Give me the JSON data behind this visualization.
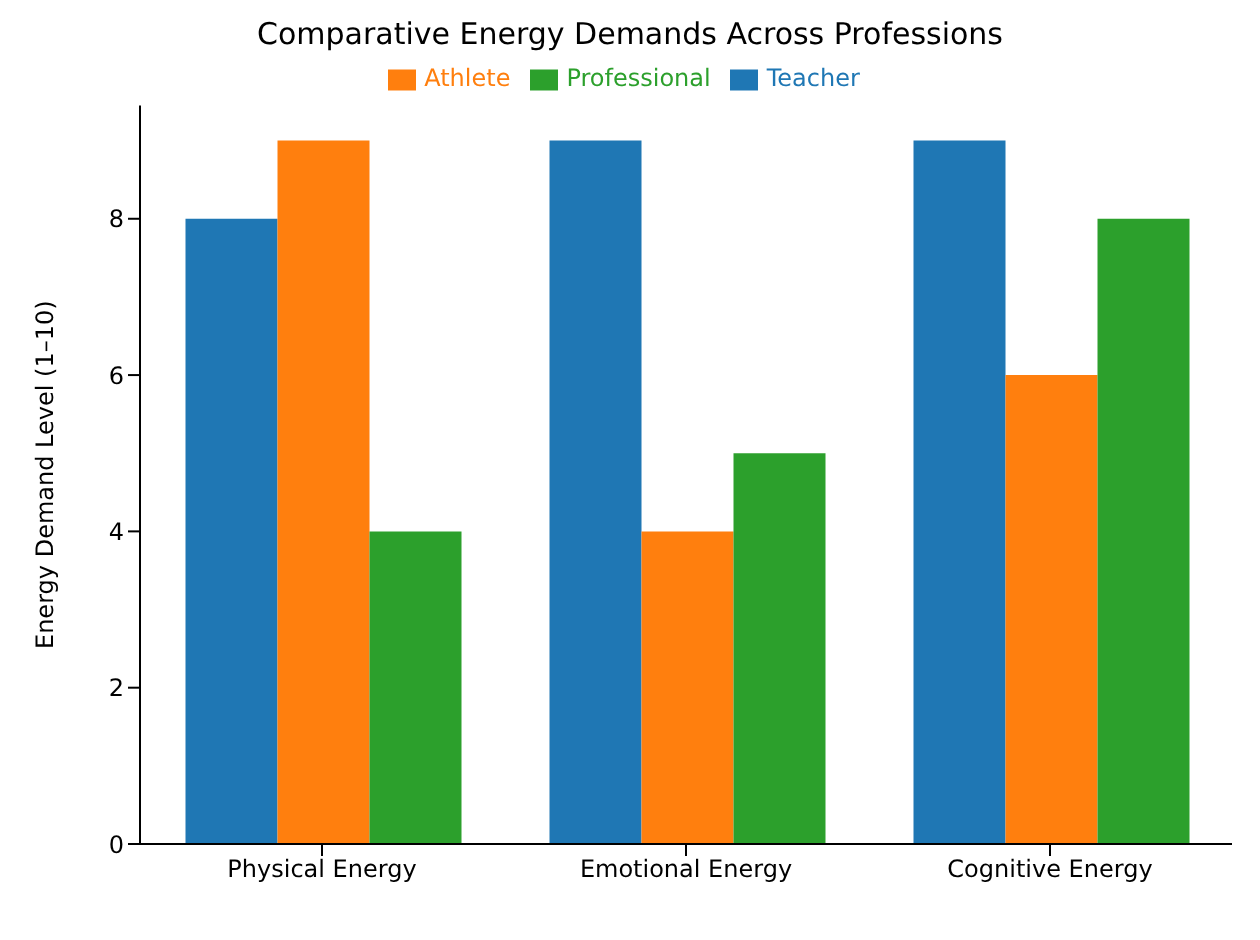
{
  "chart_data": {
    "type": "bar",
    "title": "Comparative Energy Demands Across Professions",
    "ylabel": "Energy Demand Level (1–10)",
    "categories": [
      "Physical Energy",
      "Emotional Energy",
      "Cognitive Energy"
    ],
    "series": [
      {
        "name": "Teacher",
        "color": "#1f77b4",
        "values": [
          8,
          9,
          9
        ]
      },
      {
        "name": "Athlete",
        "color": "#ff7f0e",
        "values": [
          9,
          4,
          6
        ]
      },
      {
        "name": "Professional",
        "color": "#2ca02c",
        "values": [
          4,
          5,
          8
        ]
      }
    ],
    "ylim": [
      0,
      9.45
    ],
    "yticks": [
      0,
      2,
      4,
      6,
      8
    ],
    "grid": false,
    "legend": "top"
  }
}
